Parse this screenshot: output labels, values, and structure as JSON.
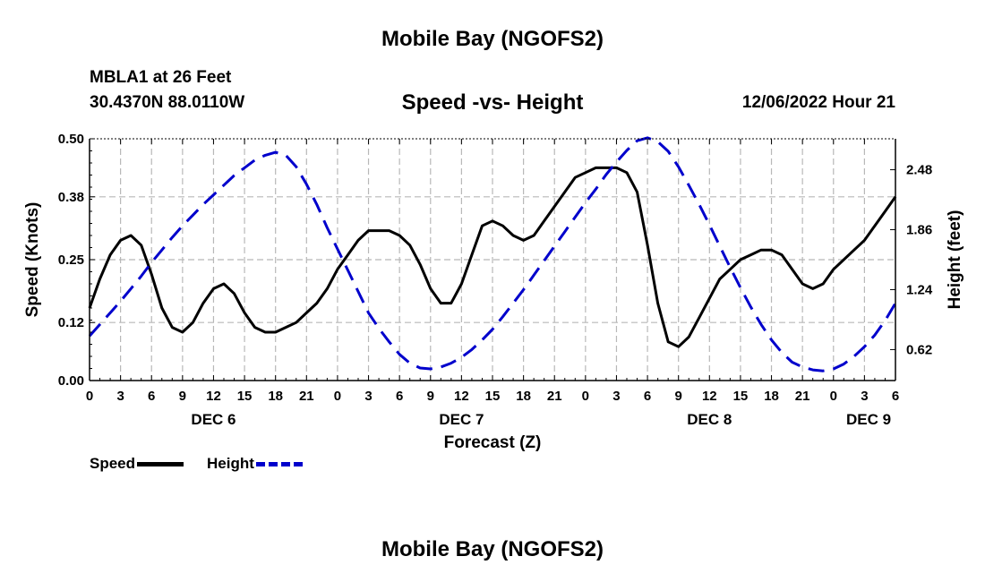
{
  "header": {
    "title": "Mobile Bay (NGOFS2)",
    "station": "MBLA1 at 26 Feet",
    "coordinates": "30.4370N  88.0110W",
    "subtitle": "Speed -vs- Height",
    "datetime": "12/06/2022 Hour 21"
  },
  "footer": {
    "title": "Mobile Bay (NGOFS2)"
  },
  "legend": {
    "speed_label": "Speed",
    "height_label": "Height"
  },
  "colors": {
    "speed": "#000000",
    "height": "#0000cc",
    "grid": "#b8b8b8"
  },
  "chart_data": {
    "type": "line",
    "xlabel": "Forecast (Z)",
    "ylabel_left": "Speed (Knots)",
    "ylabel_right": "Height (feet)",
    "x_unit": "hours from 12/06 00Z",
    "xlim": [
      0,
      78
    ],
    "ylim_left": [
      0,
      0.5
    ],
    "y_ticks_left": [
      "0.00",
      "0.12",
      "0.25",
      "0.38",
      "0.50"
    ],
    "ylim_right": [
      0.3,
      2.8
    ],
    "y_ticks_right": [
      "0.62",
      "1.24",
      "1.86",
      "2.48"
    ],
    "x_ticks": [
      "0",
      "3",
      "6",
      "9",
      "12",
      "15",
      "18",
      "21",
      "0",
      "3",
      "6",
      "9",
      "12",
      "15",
      "18",
      "21",
      "0",
      "3",
      "6",
      "9",
      "12",
      "15",
      "18",
      "21",
      "0",
      "3",
      "6"
    ],
    "date_labels": [
      {
        "label": "DEC 6",
        "hour": 12
      },
      {
        "label": "DEC 7",
        "hour": 36
      },
      {
        "label": "DEC 8",
        "hour": 60
      },
      {
        "label": "DEC 9",
        "hour": 78
      }
    ],
    "grid": true,
    "series": [
      {
        "name": "Speed",
        "axis": "left",
        "style": "solid",
        "x": [
          0,
          1,
          2,
          3,
          4,
          5,
          6,
          7,
          8,
          9,
          10,
          11,
          12,
          13,
          14,
          15,
          16,
          17,
          18,
          19,
          20,
          21,
          22,
          23,
          24,
          25,
          26,
          27,
          28,
          29,
          30,
          31,
          32,
          33,
          34,
          35,
          36,
          37,
          38,
          39,
          40,
          41,
          42,
          43,
          44,
          45,
          46,
          47,
          48,
          49,
          50,
          51,
          52,
          53,
          54,
          55,
          56,
          57,
          58,
          59,
          60,
          61,
          62,
          63,
          64,
          65,
          66,
          67,
          68,
          69,
          70,
          71,
          72,
          73,
          74,
          75,
          76,
          77,
          78
        ],
        "values": [
          0.15,
          0.21,
          0.26,
          0.29,
          0.3,
          0.28,
          0.22,
          0.15,
          0.11,
          0.1,
          0.12,
          0.16,
          0.19,
          0.2,
          0.18,
          0.14,
          0.11,
          0.1,
          0.1,
          0.11,
          0.12,
          0.14,
          0.16,
          0.19,
          0.23,
          0.26,
          0.29,
          0.31,
          0.31,
          0.31,
          0.3,
          0.28,
          0.24,
          0.19,
          0.16,
          0.16,
          0.2,
          0.26,
          0.32,
          0.33,
          0.32,
          0.3,
          0.29,
          0.3,
          0.33,
          0.36,
          0.39,
          0.42,
          0.43,
          0.44,
          0.44,
          0.44,
          0.43,
          0.39,
          0.28,
          0.16,
          0.08,
          0.07,
          0.09,
          0.13,
          0.17,
          0.21,
          0.23,
          0.25,
          0.26,
          0.27,
          0.27,
          0.26,
          0.23,
          0.2,
          0.19,
          0.2,
          0.23,
          0.25,
          0.27,
          0.29,
          0.32,
          0.35,
          0.38
        ]
      },
      {
        "name": "Height",
        "axis": "right",
        "style": "dashed",
        "x": [
          0,
          1,
          2,
          3,
          4,
          5,
          6,
          7,
          8,
          9,
          10,
          11,
          12,
          13,
          14,
          15,
          16,
          17,
          18,
          19,
          20,
          21,
          22,
          23,
          24,
          25,
          26,
          27,
          28,
          29,
          30,
          31,
          32,
          33,
          34,
          35,
          36,
          37,
          38,
          39,
          40,
          41,
          42,
          43,
          44,
          45,
          46,
          47,
          48,
          49,
          50,
          51,
          52,
          53,
          54,
          55,
          56,
          57,
          58,
          59,
          60,
          61,
          62,
          63,
          64,
          65,
          66,
          67,
          68,
          69,
          70,
          71,
          72,
          73,
          74,
          75,
          76,
          77,
          78
        ],
        "values": [
          0.76,
          0.88,
          1.0,
          1.12,
          1.25,
          1.38,
          1.52,
          1.65,
          1.78,
          1.9,
          2.01,
          2.12,
          2.22,
          2.32,
          2.42,
          2.5,
          2.58,
          2.63,
          2.66,
          2.63,
          2.51,
          2.33,
          2.12,
          1.88,
          1.66,
          1.44,
          1.22,
          1.0,
          0.84,
          0.7,
          0.57,
          0.48,
          0.43,
          0.42,
          0.44,
          0.48,
          0.54,
          0.62,
          0.72,
          0.83,
          0.96,
          1.1,
          1.24,
          1.39,
          1.54,
          1.69,
          1.84,
          1.99,
          2.14,
          2.28,
          2.43,
          2.56,
          2.68,
          2.78,
          2.81,
          2.77,
          2.67,
          2.51,
          2.32,
          2.12,
          1.91,
          1.69,
          1.47,
          1.26,
          1.06,
          0.88,
          0.72,
          0.59,
          0.49,
          0.44,
          0.41,
          0.4,
          0.42,
          0.47,
          0.55,
          0.65,
          0.77,
          0.92,
          1.1
        ]
      }
    ]
  }
}
